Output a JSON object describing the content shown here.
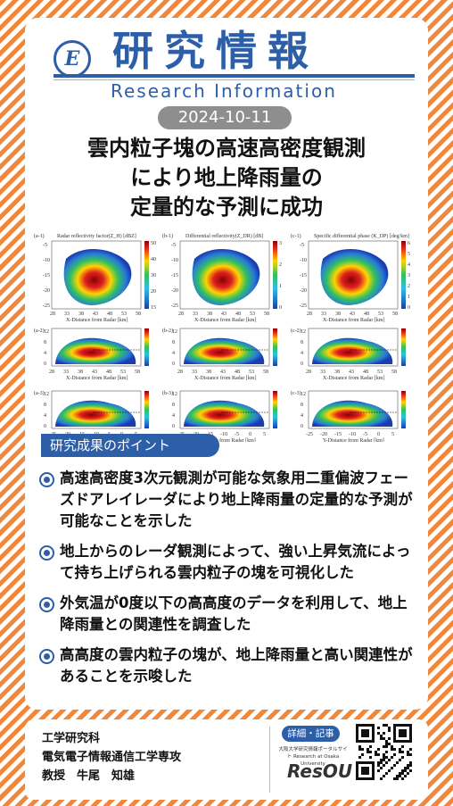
{
  "header": {
    "logo_letter": "E",
    "title": "研究情報",
    "subtitle": "Research Information"
  },
  "date": "2024-10-11",
  "article_title": [
    "雲内粒子塊の高速高密度観測",
    "により地上降雨量の",
    "定量的な予測に成功"
  ],
  "figure": {
    "panel_titles": [
      "Radar reflectivity  factor(Z_H) [dBZ]",
      "Differential  reflectivity(Z_DR) [dB]",
      "Specific differential  phase (K_DP) [deg/km]"
    ],
    "panel_ids": [
      "(a-1)",
      "(b-1)",
      "(c-1)",
      "(a-2)",
      "(b-2)",
      "(c-2)",
      "(a-3)",
      "(b-3)",
      "(c-3)"
    ],
    "ylabel_top": "Y-Distance from Radar [km]",
    "ylabel_alt": "Altitude [km]",
    "xlabel_x": "X-Distance from Radar [km]",
    "xlabel_y": "Y-Distance from Radar [km]",
    "xticks_x": [
      "28",
      "33",
      "38",
      "43",
      "48",
      "53",
      "58"
    ],
    "xticks_y": [
      "-25",
      "-20",
      "-15",
      "-10",
      "-5",
      "0",
      "5"
    ],
    "yticks_top": [
      "-5",
      "-10",
      "-15",
      "-20",
      "-25"
    ],
    "yticks_alt": [
      "12",
      "8",
      "4",
      "0"
    ],
    "colorbar_zh": [
      "50",
      "40",
      "30",
      "20",
      "15"
    ],
    "colorbar_zdr": [
      "3",
      "2",
      "1",
      "0"
    ],
    "colorbar_kdp": [
      "6",
      "5",
      "4",
      "3",
      "2",
      "1",
      "0"
    ]
  },
  "section_label": "研究成果のポイント",
  "points": [
    "高速高密度3次元観測が可能な気象用二重偏波フェーズドアレイレーダにより地上降雨量の定量的な予測が可能なことを示した",
    "地上からのレーダ観測によって、強い上昇気流によって持ち上げられる雲内粒子の塊を可視化した",
    "外気温が0度以下の高高度のデータを利用して、地上降雨量との関連性を調査した",
    "高高度の雲内粒子の塊が、地上降雨量と高い関連性があることを示唆した"
  ],
  "footer": {
    "lab_lines": [
      "工学研究科",
      "電気電子情報通信工学専攻",
      "教授　牛尾　知雄"
    ],
    "detail_label": "詳細・記事",
    "resou_caption": "大阪大学研究情報ポータルサイト Research at Osaka University",
    "resou_logo": "ResOU"
  },
  "colors": {
    "brand": "#2d5fa8",
    "stripe": "#f0873a"
  }
}
